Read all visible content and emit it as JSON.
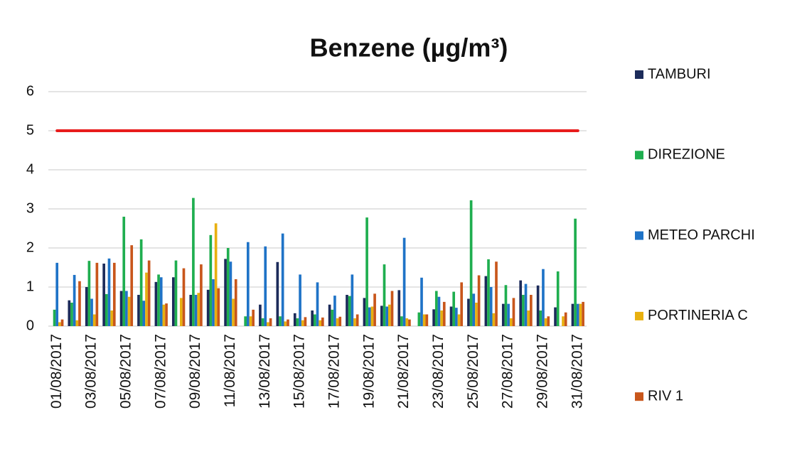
{
  "chart_data": {
    "type": "bar",
    "title": "Benzene (µg/m³)",
    "categories": [
      "01/08/2017",
      null,
      "03/08/2017",
      null,
      "05/08/2017",
      null,
      "07/08/2017",
      null,
      "09/08/2017",
      null,
      "11/08/2017",
      null,
      "13/08/2017",
      null,
      "15/08/2017",
      null,
      "17/08/2017",
      null,
      "19/08/2017",
      null,
      "21/08/2017",
      null,
      "23/08/2017",
      null,
      "25/08/2017",
      null,
      "27/08/2017",
      null,
      "29/08/2017",
      null,
      "31/08/2017"
    ],
    "series": [
      {
        "name": "TAMBURI",
        "color": "#1c2b5a",
        "values": [
          0,
          0.66,
          1.0,
          1.6,
          0.9,
          0.8,
          1.13,
          1.25,
          0.8,
          0.93,
          1.72,
          0,
          0.55,
          1.64,
          0.33,
          0.4,
          0.55,
          0.8,
          0.72,
          0.52,
          0.92,
          0,
          0.43,
          0.5,
          0.7,
          1.28,
          0.57,
          1.17,
          1.04,
          0.48,
          0.57
        ]
      },
      {
        "name": "DIREZIONE",
        "color": "#1fae4f",
        "values": [
          0.42,
          0.6,
          1.67,
          0.82,
          2.8,
          2.22,
          1.32,
          1.68,
          3.28,
          2.33,
          2.0,
          0.25,
          0.2,
          0.25,
          0.2,
          0.3,
          0.42,
          0.77,
          2.78,
          1.58,
          0.25,
          0.35,
          0.9,
          0.88,
          3.22,
          1.71,
          1.05,
          0.8,
          0.4,
          1.4,
          2.75
        ]
      },
      {
        "name": "METEO PARCHI",
        "color": "#1f73c7",
        "values": [
          1.62,
          1.31,
          0.7,
          1.73,
          0.9,
          0.65,
          1.25,
          0,
          0.8,
          1.2,
          1.65,
          2.15,
          2.04,
          2.37,
          1.32,
          1.12,
          0.78,
          1.32,
          0.48,
          0.5,
          2.26,
          1.24,
          0.75,
          0.47,
          0.83,
          1.0,
          0.57,
          1.08,
          1.46,
          0,
          0.57
        ]
      },
      {
        "name": "PORTINERIA C",
        "color": "#e8b00f",
        "values": [
          0.1,
          0.15,
          0.3,
          0.4,
          0.75,
          1.37,
          0.55,
          0.72,
          0.85,
          2.63,
          0.7,
          0.25,
          0.1,
          0.12,
          0.15,
          0.15,
          0.2,
          0.2,
          0.5,
          0.55,
          0.2,
          0.3,
          0.4,
          0.3,
          0.6,
          0.33,
          0.2,
          0.4,
          0.2,
          0.25,
          0.57
        ]
      },
      {
        "name": "RIV 1",
        "color": "#c8561b",
        "values": [
          0.17,
          1.15,
          1.62,
          1.62,
          2.07,
          1.68,
          0.58,
          1.48,
          1.58,
          0.97,
          1.2,
          0.42,
          0.2,
          0.17,
          0.23,
          0.22,
          0.24,
          0.3,
          0.83,
          0.9,
          0.17,
          0.3,
          0.62,
          1.12,
          1.3,
          1.65,
          0.72,
          0.8,
          0.25,
          0.35,
          0.62
        ]
      }
    ],
    "reference_line": {
      "value": 5,
      "color": "#e81c1c"
    },
    "ylim": [
      0,
      6
    ],
    "yticks": [
      0,
      1,
      2,
      3,
      4,
      5,
      6
    ],
    "grid": true
  }
}
